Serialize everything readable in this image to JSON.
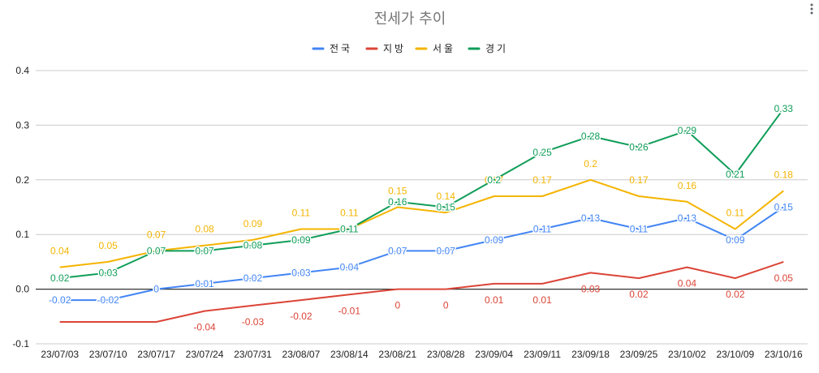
{
  "chart_data": {
    "type": "line",
    "title": "전세가 추이",
    "xlabel": "",
    "ylabel": "",
    "ylim": [
      -0.1,
      0.4
    ],
    "yticks": [
      -0.1,
      0.0,
      0.1,
      0.2,
      0.3,
      0.4
    ],
    "ytick_labels": [
      "-0.1",
      "0.0",
      "0.1",
      "0.2",
      "0.3",
      "0.4"
    ],
    "grid": true,
    "legend_position": "top",
    "categories": [
      "23/07/03",
      "23/07/10",
      "23/07/17",
      "23/07/24",
      "23/07/31",
      "23/08/07",
      "23/08/14",
      "23/08/21",
      "23/08/28",
      "23/09/04",
      "23/09/11",
      "23/09/18",
      "23/09/25",
      "23/10/02",
      "23/10/09",
      "23/10/16"
    ],
    "series": [
      {
        "name": "전국",
        "color": "#4285f4",
        "values": [
          -0.02,
          -0.02,
          0,
          0.01,
          0.02,
          0.03,
          0.04,
          0.07,
          0.07,
          0.09,
          0.11,
          0.13,
          0.11,
          0.13,
          0.09,
          0.15
        ]
      },
      {
        "name": "지방",
        "color": "#db4437",
        "values": [
          -0.06,
          -0.06,
          -0.06,
          -0.04,
          -0.03,
          -0.02,
          -0.01,
          0,
          0,
          0.01,
          0.01,
          0.03,
          0.02,
          0.04,
          0.02,
          0.05
        ],
        "labels": [
          "",
          "",
          "",
          "-0.04",
          "-0.03",
          "-0.02",
          "-0.01",
          "0",
          "0",
          "0.01",
          "0.01",
          "0.03",
          "0.02",
          "0.04",
          "0.02",
          "0.05"
        ]
      },
      {
        "name": "서울",
        "color": "#f4b400",
        "values": [
          0.04,
          0.05,
          0.07,
          0.08,
          0.09,
          0.11,
          0.11,
          0.15,
          0.14,
          0.17,
          0.17,
          0.2,
          0.17,
          0.16,
          0.11,
          0.18
        ],
        "labels": [
          "0.04",
          "0.05",
          "0.07",
          "0.08",
          "0.09",
          "0.11",
          "0.11",
          "0.15",
          "0.14",
          "0.17",
          "0.17",
          "0.2",
          "0.17",
          "0.16",
          "0.11",
          "0.18"
        ]
      },
      {
        "name": "경기",
        "color": "#0f9d58",
        "values": [
          0.02,
          0.03,
          0.07,
          0.07,
          0.08,
          0.09,
          0.11,
          0.16,
          0.15,
          0.2,
          0.25,
          0.28,
          0.26,
          0.29,
          0.21,
          0.33
        ]
      }
    ]
  }
}
